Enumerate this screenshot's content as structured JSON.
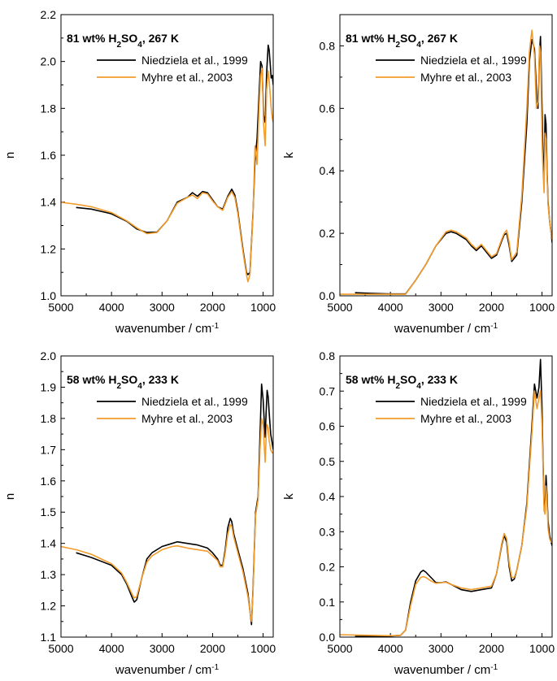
{
  "chart_data": [
    {
      "type": "line",
      "title": "81 wt% H2SO4, 267 K",
      "title_parts": [
        "81 wt% H",
        "2",
        "SO",
        "4",
        ", 267 K"
      ],
      "xlabel": "wavenumber / cm",
      "xlabel_sup": "-1",
      "ylabel": "n",
      "xlim": [
        5000,
        800
      ],
      "ylim": [
        1.0,
        2.2
      ],
      "x_ticks": [
        5000,
        4000,
        3000,
        2000,
        1000
      ],
      "y_ticks": [
        1.0,
        1.2,
        1.4,
        1.6,
        1.8,
        2.0,
        2.2
      ],
      "y_tick_labels": [
        "1.0",
        "1.2",
        "1.4",
        "1.6",
        "1.8",
        "2.0",
        "2.2"
      ],
      "legend_position": "top-right",
      "grid": false,
      "series": [
        {
          "name": "Niedziela et al., 1999",
          "color": "#000000",
          "x": [
            4700,
            4400,
            4000,
            3700,
            3500,
            3300,
            3100,
            2900,
            2700,
            2500,
            2400,
            2300,
            2200,
            2100,
            2000,
            1900,
            1800,
            1700,
            1620,
            1560,
            1500,
            1400,
            1330,
            1300,
            1260,
            1200,
            1160,
            1120,
            1080,
            1050,
            1020,
            990,
            960,
            930,
            900,
            880,
            860,
            840,
            820,
            800
          ],
          "y": [
            1.377,
            1.37,
            1.35,
            1.318,
            1.285,
            1.27,
            1.272,
            1.32,
            1.4,
            1.42,
            1.44,
            1.425,
            1.445,
            1.44,
            1.41,
            1.38,
            1.37,
            1.425,
            1.455,
            1.43,
            1.36,
            1.2,
            1.1,
            1.09,
            1.1,
            1.35,
            1.58,
            1.67,
            1.86,
            2.0,
            1.98,
            1.77,
            1.74,
            1.95,
            2.07,
            2.05,
            1.99,
            1.93,
            1.94,
            1.9
          ]
        },
        {
          "name": "Myhre et al., 2003",
          "color": "#F39C2B",
          "x": [
            5000,
            4700,
            4400,
            4000,
            3700,
            3500,
            3300,
            3100,
            2900,
            2700,
            2500,
            2400,
            2300,
            2200,
            2100,
            2000,
            1900,
            1800,
            1700,
            1620,
            1560,
            1500,
            1400,
            1330,
            1300,
            1260,
            1200,
            1160,
            1140,
            1120,
            1080,
            1050,
            1020,
            990,
            960,
            930,
            900,
            880,
            860,
            840,
            820,
            800
          ],
          "y": [
            1.399,
            1.391,
            1.38,
            1.355,
            1.32,
            1.29,
            1.265,
            1.27,
            1.32,
            1.395,
            1.42,
            1.43,
            1.415,
            1.44,
            1.435,
            1.405,
            1.38,
            1.365,
            1.42,
            1.445,
            1.42,
            1.35,
            1.19,
            1.09,
            1.06,
            1.09,
            1.34,
            1.64,
            1.6,
            1.56,
            1.8,
            1.94,
            1.97,
            1.73,
            1.64,
            1.88,
            1.96,
            1.92,
            1.86,
            1.8,
            1.76,
            1.74
          ]
        }
      ]
    },
    {
      "type": "line",
      "title": "81 wt% H2SO4, 267 K",
      "title_parts": [
        "81 wt% H",
        "2",
        "SO",
        "4",
        ", 267 K"
      ],
      "xlabel": "wavenumber / cm",
      "xlabel_sup": "-1",
      "ylabel": "k",
      "xlim": [
        5000,
        800
      ],
      "ylim": [
        0.0,
        0.9
      ],
      "x_ticks": [
        5000,
        4000,
        3000,
        2000,
        1000
      ],
      "y_ticks": [
        0.0,
        0.2,
        0.4,
        0.6,
        0.8
      ],
      "y_tick_labels": [
        "0.0",
        "0.2",
        "0.4",
        "0.6",
        "0.8"
      ],
      "legend_position": "top-right",
      "grid": false,
      "series": [
        {
          "name": "Niedziela et al., 1999",
          "color": "#000000",
          "x": [
            4700,
            4400,
            4000,
            3700,
            3500,
            3300,
            3100,
            2900,
            2800,
            2700,
            2500,
            2400,
            2300,
            2200,
            2100,
            2000,
            1900,
            1800,
            1750,
            1700,
            1650,
            1600,
            1500,
            1400,
            1300,
            1250,
            1200,
            1150,
            1100,
            1080,
            1050,
            1030,
            1000,
            980,
            960,
            940,
            920,
            900,
            880,
            850,
            820,
            800
          ],
          "y": [
            0.01,
            0.008,
            0.006,
            0.006,
            0.05,
            0.1,
            0.16,
            0.2,
            0.205,
            0.2,
            0.18,
            0.16,
            0.145,
            0.16,
            0.14,
            0.12,
            0.13,
            0.175,
            0.195,
            0.2,
            0.16,
            0.11,
            0.13,
            0.3,
            0.55,
            0.75,
            0.82,
            0.79,
            0.62,
            0.6,
            0.78,
            0.83,
            0.6,
            0.45,
            0.38,
            0.58,
            0.55,
            0.4,
            0.3,
            0.24,
            0.2,
            0.17
          ]
        },
        {
          "name": "Myhre et al., 2003",
          "color": "#F39C2B",
          "x": [
            5000,
            4700,
            4400,
            4000,
            3700,
            3500,
            3300,
            3100,
            2900,
            2800,
            2700,
            2500,
            2400,
            2300,
            2200,
            2100,
            2000,
            1900,
            1800,
            1750,
            1700,
            1650,
            1600,
            1500,
            1400,
            1300,
            1250,
            1200,
            1150,
            1110,
            1080,
            1050,
            1030,
            1000,
            980,
            960,
            940,
            920,
            900,
            880,
            850,
            820,
            800
          ],
          "y": [
            0.005,
            0.005,
            0.005,
            0.005,
            0.005,
            0.05,
            0.1,
            0.16,
            0.205,
            0.21,
            0.205,
            0.185,
            0.165,
            0.15,
            0.165,
            0.145,
            0.125,
            0.135,
            0.18,
            0.2,
            0.21,
            0.17,
            0.115,
            0.14,
            0.32,
            0.6,
            0.78,
            0.85,
            0.77,
            0.6,
            0.62,
            0.8,
            0.78,
            0.5,
            0.4,
            0.33,
            0.52,
            0.5,
            0.38,
            0.29,
            0.24,
            0.2,
            0.18
          ]
        }
      ]
    },
    {
      "type": "line",
      "title": "58 wt% H2SO4, 233 K",
      "title_parts": [
        "58 wt% H",
        "2",
        "SO",
        "4",
        ", 233 K"
      ],
      "xlabel": "wavenumber / cm",
      "xlabel_sup": "-1",
      "ylabel": "n",
      "xlim": [
        5000,
        800
      ],
      "ylim": [
        1.1,
        2.0
      ],
      "x_ticks": [
        5000,
        4000,
        3000,
        2000,
        1000
      ],
      "y_ticks": [
        1.1,
        1.2,
        1.3,
        1.4,
        1.5,
        1.6,
        1.7,
        1.8,
        1.9,
        2.0
      ],
      "y_tick_labels": [
        "1.1",
        "1.2",
        "1.3",
        "1.4",
        "1.5",
        "1.6",
        "1.7",
        "1.8",
        "1.9",
        "2.0"
      ],
      "legend_position": "top-right",
      "grid": false,
      "series": [
        {
          "name": "Niedziela et al., 1999",
          "color": "#000000",
          "x": [
            4700,
            4400,
            4000,
            3800,
            3700,
            3600,
            3550,
            3500,
            3400,
            3300,
            3200,
            3000,
            2800,
            2700,
            2500,
            2300,
            2100,
            2000,
            1900,
            1850,
            1800,
            1750,
            1700,
            1650,
            1620,
            1580,
            1500,
            1400,
            1300,
            1250,
            1230,
            1200,
            1150,
            1100,
            1060,
            1030,
            1000,
            980,
            960,
            940,
            920,
            900,
            880,
            850,
            820,
            800
          ],
          "y": [
            1.37,
            1.355,
            1.33,
            1.3,
            1.27,
            1.23,
            1.212,
            1.22,
            1.29,
            1.35,
            1.37,
            1.39,
            1.4,
            1.405,
            1.4,
            1.395,
            1.385,
            1.37,
            1.35,
            1.33,
            1.33,
            1.38,
            1.45,
            1.48,
            1.47,
            1.43,
            1.38,
            1.32,
            1.24,
            1.17,
            1.14,
            1.25,
            1.5,
            1.55,
            1.75,
            1.91,
            1.86,
            1.8,
            1.74,
            1.82,
            1.89,
            1.87,
            1.82,
            1.75,
            1.72,
            1.7
          ]
        },
        {
          "name": "Myhre et al., 2003",
          "color": "#F39C2B",
          "x": [
            5000,
            4700,
            4400,
            4000,
            3800,
            3700,
            3600,
            3550,
            3500,
            3400,
            3300,
            3200,
            3000,
            2800,
            2700,
            2500,
            2300,
            2100,
            2000,
            1900,
            1850,
            1800,
            1750,
            1700,
            1650,
            1620,
            1580,
            1500,
            1400,
            1300,
            1250,
            1230,
            1200,
            1150,
            1100,
            1060,
            1030,
            1000,
            980,
            960,
            940,
            920,
            900,
            880,
            850,
            820,
            800
          ],
          "y": [
            1.39,
            1.38,
            1.365,
            1.335,
            1.305,
            1.275,
            1.24,
            1.225,
            1.23,
            1.29,
            1.34,
            1.36,
            1.38,
            1.39,
            1.392,
            1.385,
            1.38,
            1.375,
            1.36,
            1.345,
            1.325,
            1.325,
            1.37,
            1.43,
            1.46,
            1.455,
            1.42,
            1.37,
            1.31,
            1.23,
            1.17,
            1.15,
            1.24,
            1.49,
            1.54,
            1.7,
            1.8,
            1.78,
            1.72,
            1.66,
            1.74,
            1.78,
            1.77,
            1.73,
            1.7,
            1.69,
            1.69
          ]
        }
      ]
    },
    {
      "type": "line",
      "title": "58 wt% H2SO4, 233 K",
      "title_parts": [
        "58 wt% H",
        "2",
        "SO",
        "4",
        ", 233 K"
      ],
      "xlabel": "wavenumber / cm",
      "xlabel_sup": "-1",
      "ylabel": "k",
      "xlim": [
        5000,
        800
      ],
      "ylim": [
        0.0,
        0.8
      ],
      "x_ticks": [
        5000,
        4000,
        3000,
        2000,
        1000
      ],
      "y_ticks": [
        0.0,
        0.1,
        0.2,
        0.3,
        0.4,
        0.5,
        0.6,
        0.7,
        0.8
      ],
      "y_tick_labels": [
        "0.0",
        "0.1",
        "0.2",
        "0.3",
        "0.4",
        "0.5",
        "0.6",
        "0.7",
        "0.8"
      ],
      "legend_position": "top-right",
      "grid": false,
      "series": [
        {
          "name": "Niedziela et al., 1999",
          "color": "#000000",
          "x": [
            4700,
            4400,
            4000,
            3800,
            3700,
            3600,
            3500,
            3400,
            3350,
            3300,
            3200,
            3100,
            3000,
            2900,
            2800,
            2600,
            2400,
            2200,
            2000,
            1900,
            1800,
            1750,
            1700,
            1650,
            1600,
            1550,
            1500,
            1400,
            1300,
            1200,
            1150,
            1100,
            1060,
            1030,
            1000,
            980,
            960,
            940,
            920,
            900,
            880,
            850,
            820,
            800
          ],
          "y": [
            0.002,
            0.002,
            0.003,
            0.005,
            0.02,
            0.1,
            0.16,
            0.185,
            0.19,
            0.185,
            0.17,
            0.155,
            0.155,
            0.157,
            0.15,
            0.135,
            0.13,
            0.135,
            0.14,
            0.18,
            0.26,
            0.29,
            0.27,
            0.2,
            0.16,
            0.165,
            0.19,
            0.26,
            0.38,
            0.6,
            0.72,
            0.68,
            0.71,
            0.79,
            0.65,
            0.5,
            0.38,
            0.36,
            0.46,
            0.4,
            0.33,
            0.29,
            0.27,
            0.26
          ]
        },
        {
          "name": "Myhre et al., 2003",
          "color": "#F39C2B",
          "x": [
            5000,
            4700,
            4400,
            4000,
            3800,
            3700,
            3600,
            3500,
            3400,
            3350,
            3300,
            3200,
            3100,
            3000,
            2900,
            2800,
            2600,
            2400,
            2200,
            2000,
            1900,
            1800,
            1750,
            1700,
            1650,
            1600,
            1550,
            1500,
            1400,
            1300,
            1200,
            1150,
            1100,
            1060,
            1030,
            1000,
            980,
            960,
            940,
            920,
            900,
            880,
            850,
            820,
            800
          ],
          "y": [
            0.007,
            0.006,
            0.005,
            0.004,
            0.005,
            0.02,
            0.09,
            0.15,
            0.17,
            0.172,
            0.17,
            0.16,
            0.153,
            0.155,
            0.156,
            0.15,
            0.14,
            0.135,
            0.14,
            0.145,
            0.18,
            0.265,
            0.295,
            0.28,
            0.21,
            0.17,
            0.17,
            0.19,
            0.26,
            0.37,
            0.58,
            0.7,
            0.65,
            0.68,
            0.7,
            0.6,
            0.48,
            0.36,
            0.35,
            0.43,
            0.38,
            0.31,
            0.28,
            0.27,
            0.27
          ]
        }
      ]
    }
  ]
}
